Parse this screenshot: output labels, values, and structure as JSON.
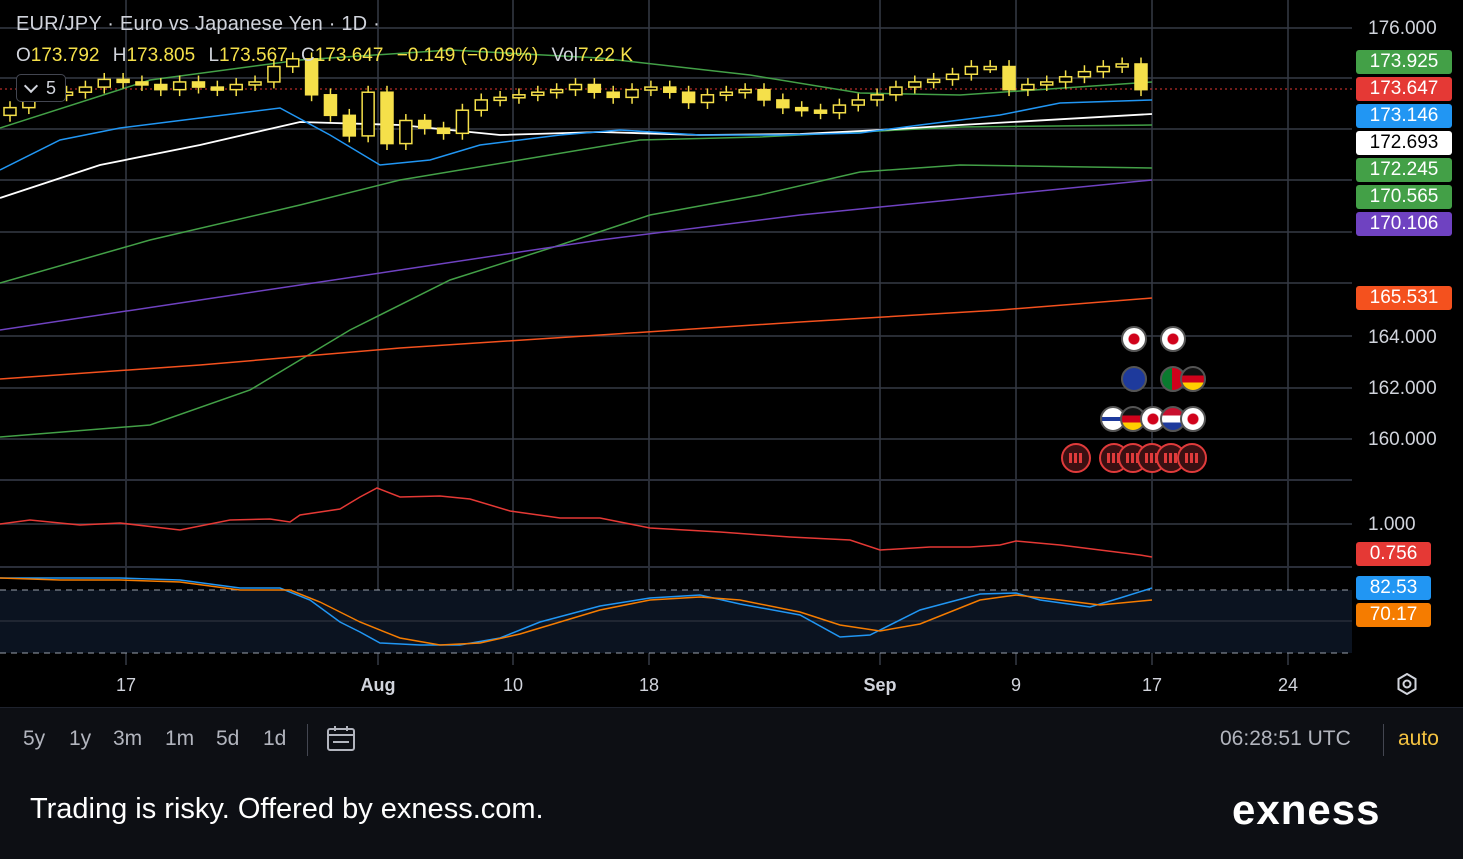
{
  "header": {
    "symbol": "EUR/JPY",
    "description": "Euro vs Japanese Yen",
    "interval": "1D",
    "open_label": "O",
    "open": "173.792",
    "high_label": "H",
    "high": "173.805",
    "low_label": "L",
    "low": "173.567",
    "close_label": "C",
    "close": "173.647",
    "change": "−0.149 (−0.09%)",
    "vol_label": "Vol",
    "vol": "7.22 K",
    "indicators_count": "5"
  },
  "price_tags": [
    {
      "value": "173.925",
      "color": "#43a047"
    },
    {
      "value": "173.647",
      "color": "#e53935"
    },
    {
      "value": "173.146",
      "color": "#2196f3"
    },
    {
      "value": "172.693",
      "color": "#ffffff"
    },
    {
      "value": "172.245",
      "color": "#43a047"
    },
    {
      "value": "170.565",
      "color": "#43a047"
    },
    {
      "value": "170.106",
      "color": "#6f42c1"
    },
    {
      "value": "165.531",
      "color": "#f4511e"
    }
  ],
  "y_axis_labels": [
    "176.000",
    "164.000",
    "162.000",
    "160.000"
  ],
  "oscillator1": {
    "axis_label": "1.000",
    "tag": "0.756",
    "tag_color": "#e53935"
  },
  "oscillator2": {
    "tag_k": "82.53",
    "tag_k_color": "#2196f3",
    "tag_d": "70.17",
    "tag_d_color": "#f57c00"
  },
  "x_axis_labels": [
    {
      "text": "17",
      "bold": false
    },
    {
      "text": "Aug",
      "bold": true
    },
    {
      "text": "10",
      "bold": false
    },
    {
      "text": "18",
      "bold": false
    },
    {
      "text": "Sep",
      "bold": true
    },
    {
      "text": "9",
      "bold": false
    },
    {
      "text": "17",
      "bold": false
    },
    {
      "text": "24",
      "bold": false
    }
  ],
  "toolbar": {
    "timeframes": [
      "5y",
      "1y",
      "3m",
      "1m",
      "5d",
      "1d"
    ],
    "clock": "06:28:51 UTC",
    "auto": "auto"
  },
  "footer": {
    "risk_text": "Trading is risky. Offered by exness.com.",
    "logo": "exness"
  },
  "chart_data": {
    "type": "candlestick",
    "symbol": "EUR/JPY",
    "interval": "1D",
    "y_range": [
      158.5,
      177
    ],
    "candles_close_approx": [
      172.9,
      173.6,
      173.4,
      173.5,
      173.7,
      174.0,
      173.9,
      173.8,
      173.6,
      173.9,
      173.7,
      173.6,
      173.8,
      173.9,
      174.5,
      174.8,
      173.4,
      172.6,
      171.8,
      173.5,
      171.5,
      172.4,
      172.1,
      171.9,
      172.8,
      173.2,
      173.3,
      173.4,
      173.5,
      173.6,
      173.8,
      173.5,
      173.3,
      173.6,
      173.7,
      173.5,
      173.1,
      173.4,
      173.5,
      173.6,
      173.2,
      172.9,
      172.8,
      172.7,
      173.0,
      173.2,
      173.4,
      173.7,
      173.9,
      174.0,
      174.2,
      174.5,
      174.5,
      173.6,
      173.8,
      173.9,
      174.1,
      174.3,
      174.5,
      174.6,
      173.6
    ],
    "series": [
      {
        "name": "",
        "color": "#43a047",
        "last": 173.925
      },
      {
        "name": "",
        "color": "#2196f3",
        "last": 173.146
      },
      {
        "name": "",
        "color": "#ffffff",
        "last": 172.693
      },
      {
        "name": "",
        "color": "#43a047",
        "last": 172.245
      },
      {
        "name": "",
        "color": "#43a047",
        "last": 170.565
      },
      {
        "name": "",
        "color": "#6f42c1",
        "last": 170.106
      },
      {
        "name": "",
        "color": "#f4511e",
        "last": 165.531
      }
    ],
    "oscillator_1": {
      "color": "#e53935",
      "last": 0.756
    },
    "oscillator_2": {
      "k_last": 82.53,
      "d_last": 70.17
    }
  }
}
